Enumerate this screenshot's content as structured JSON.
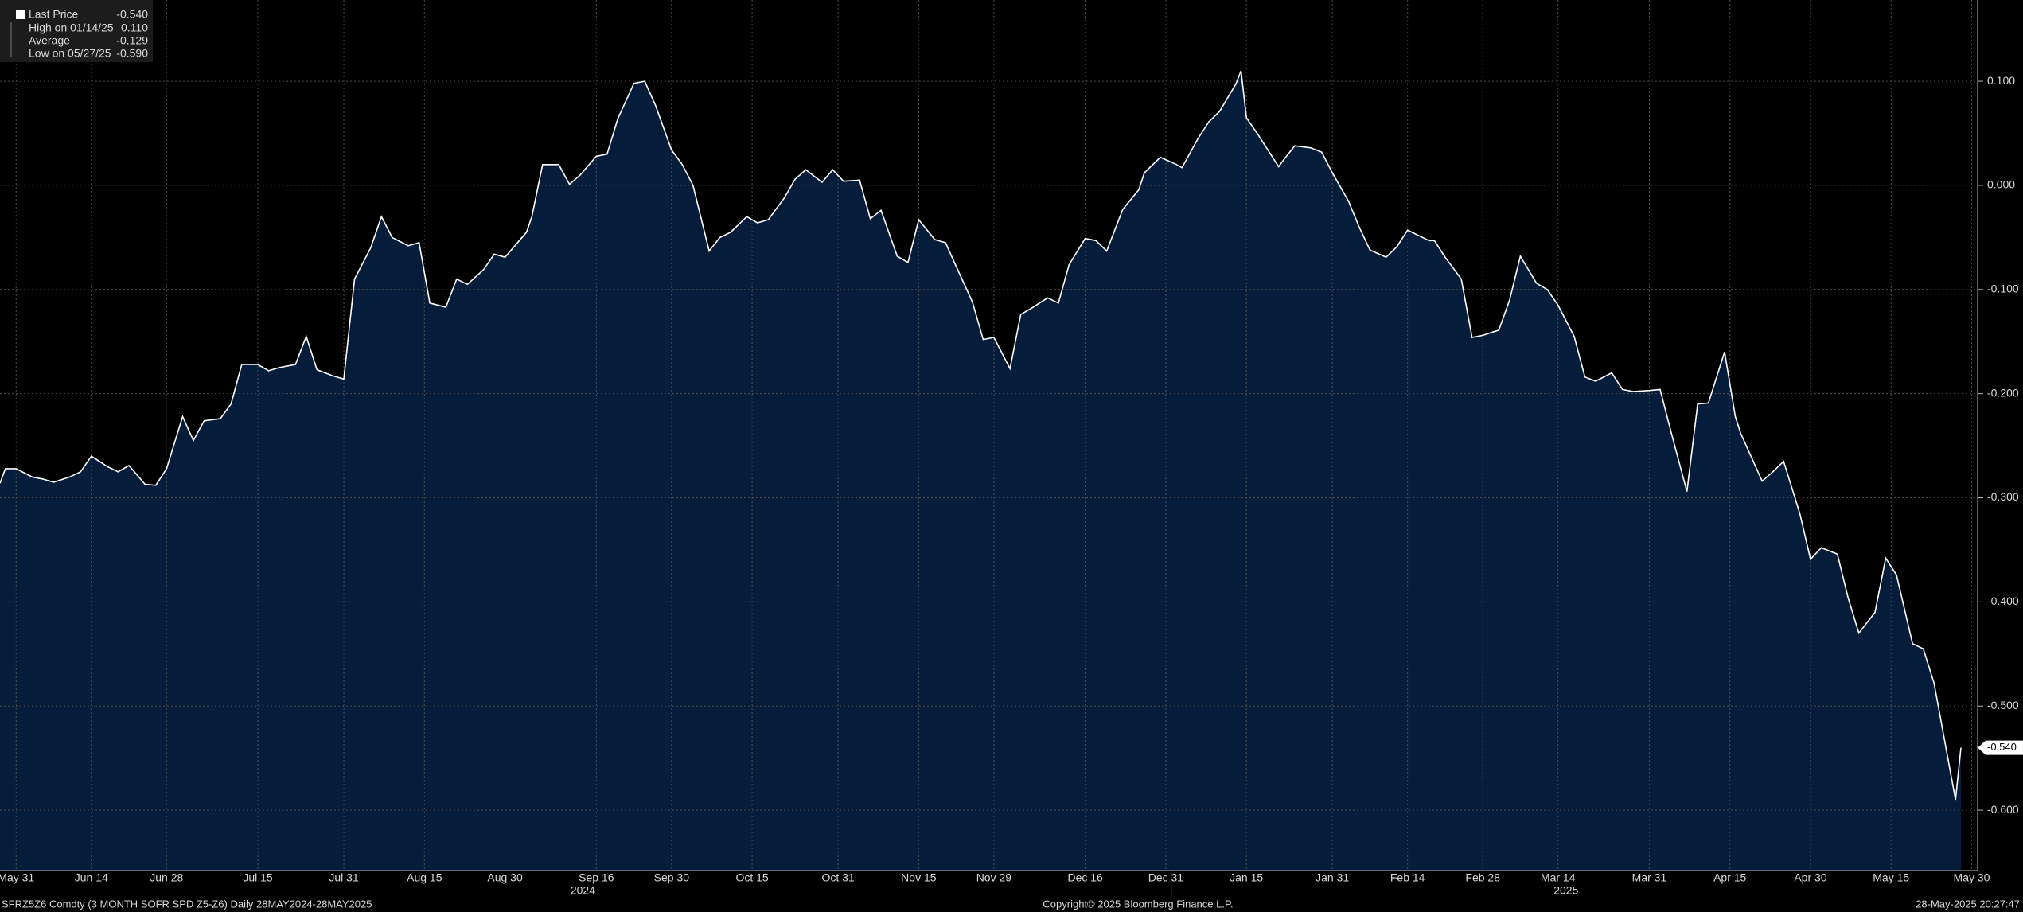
{
  "chart_data": {
    "type": "area",
    "series": [
      {
        "name": "Last Price",
        "color": "#ffffff",
        "fill": "#051d3b",
        "values": [
          -0.286,
          -0.272,
          -0.272,
          -0.28,
          -0.282,
          -0.285,
          -0.28,
          -0.275,
          -0.26,
          -0.27,
          -0.275,
          -0.269,
          -0.287,
          -0.288,
          -0.272,
          -0.222,
          -0.245,
          -0.226,
          -0.224,
          -0.21,
          -0.172,
          -0.172,
          -0.178,
          -0.175,
          -0.172,
          -0.145,
          -0.177,
          -0.183,
          -0.186,
          -0.09,
          -0.06,
          -0.03,
          -0.05,
          -0.058,
          -0.055,
          -0.113,
          -0.117,
          -0.09,
          -0.095,
          -0.081,
          -0.066,
          -0.069,
          -0.045,
          -0.03,
          0.02,
          0.02,
          0.001,
          0.01,
          0.028,
          0.03,
          0.064,
          0.098,
          0.1,
          0.077,
          0.034,
          0.02,
          0.0,
          -0.063,
          -0.05,
          -0.045,
          -0.03,
          -0.036,
          -0.033,
          -0.012,
          0.006,
          0.015,
          0.003,
          0.015,
          0.004,
          0.005,
          -0.032,
          -0.024,
          -0.068,
          -0.074,
          -0.033,
          -0.052,
          -0.055,
          -0.078,
          -0.112,
          -0.148,
          -0.146,
          -0.176,
          -0.124,
          -0.118,
          -0.108,
          -0.113,
          -0.076,
          -0.051,
          -0.053,
          -0.063,
          -0.023,
          -0.004,
          0.012,
          0.027,
          0.02,
          0.017,
          0.045,
          0.061,
          0.071,
          0.097,
          0.11,
          0.065,
          0.05,
          0.018,
          0.025,
          0.038,
          0.036,
          0.032,
          0.012,
          -0.015,
          -0.04,
          -0.062,
          -0.069,
          -0.059,
          -0.043,
          -0.053,
          -0.053,
          -0.069,
          -0.09,
          -0.146,
          -0.144,
          -0.139,
          -0.11,
          -0.068,
          -0.094,
          -0.1,
          -0.115,
          -0.145,
          -0.184,
          -0.188,
          -0.18,
          -0.196,
          -0.198,
          -0.197,
          -0.196,
          -0.236,
          -0.294,
          -0.21,
          -0.209,
          -0.16,
          -0.222,
          -0.238,
          -0.284,
          -0.275,
          -0.265,
          -0.315,
          -0.359,
          -0.348,
          -0.354,
          -0.396,
          -0.43,
          -0.41,
          -0.358,
          -0.374,
          -0.44,
          -0.445,
          -0.478,
          -0.59,
          -0.54
        ]
      }
    ],
    "x": [
      "2024-05-28",
      "2024-05-29",
      "2024-05-31",
      "2024-06-03",
      "2024-06-05",
      "2024-06-07",
      "2024-06-10",
      "2024-06-12",
      "2024-06-14",
      "2024-06-17",
      "2024-06-19",
      "2024-06-21",
      "2024-06-24",
      "2024-06-26",
      "2024-06-28",
      "2024-07-01",
      "2024-07-03",
      "2024-07-05",
      "2024-07-08",
      "2024-07-10",
      "2024-07-12",
      "2024-07-15",
      "2024-07-17",
      "2024-07-19",
      "2024-07-22",
      "2024-07-24",
      "2024-07-26",
      "2024-07-29",
      "2024-07-31",
      "2024-08-02",
      "2024-08-05",
      "2024-08-07",
      "2024-08-09",
      "2024-08-12",
      "2024-08-14",
      "2024-08-16",
      "2024-08-19",
      "2024-08-21",
      "2024-08-23",
      "2024-08-26",
      "2024-08-28",
      "2024-08-30",
      "2024-09-03",
      "2024-09-04",
      "2024-09-06",
      "2024-09-09",
      "2024-09-11",
      "2024-09-13",
      "2024-09-16",
      "2024-09-18",
      "2024-09-20",
      "2024-09-23",
      "2024-09-25",
      "2024-09-27",
      "2024-09-30",
      "2024-10-02",
      "2024-10-04",
      "2024-10-07",
      "2024-10-09",
      "2024-10-11",
      "2024-10-14",
      "2024-10-16",
      "2024-10-18",
      "2024-10-21",
      "2024-10-23",
      "2024-10-25",
      "2024-10-28",
      "2024-10-30",
      "2024-11-01",
      "2024-11-04",
      "2024-11-06",
      "2024-11-08",
      "2024-11-11",
      "2024-11-13",
      "2024-11-15",
      "2024-11-18",
      "2024-11-20",
      "2024-11-22",
      "2024-11-25",
      "2024-11-27",
      "2024-11-29",
      "2024-12-02",
      "2024-12-04",
      "2024-12-06",
      "2024-12-09",
      "2024-12-11",
      "2024-12-13",
      "2024-12-16",
      "2024-12-18",
      "2024-12-20",
      "2024-12-23",
      "2024-12-26",
      "2024-12-27",
      "2024-12-30",
      "2025-01-02",
      "2025-01-03",
      "2025-01-06",
      "2025-01-08",
      "2025-01-10",
      "2025-01-13",
      "2025-01-14",
      "2025-01-15",
      "2025-01-17",
      "2025-01-21",
      "2025-01-22",
      "2025-01-24",
      "2025-01-27",
      "2025-01-29",
      "2025-01-31",
      "2025-02-03",
      "2025-02-05",
      "2025-02-07",
      "2025-02-10",
      "2025-02-12",
      "2025-02-14",
      "2025-02-18",
      "2025-02-19",
      "2025-02-21",
      "2025-02-24",
      "2025-02-26",
      "2025-02-28",
      "2025-03-03",
      "2025-03-05",
      "2025-03-07",
      "2025-03-10",
      "2025-03-12",
      "2025-03-14",
      "2025-03-17",
      "2025-03-19",
      "2025-03-21",
      "2025-03-24",
      "2025-03-26",
      "2025-03-28",
      "2025-03-31",
      "2025-04-02",
      "2025-04-04",
      "2025-04-07",
      "2025-04-09",
      "2025-04-11",
      "2025-04-14",
      "2025-04-16",
      "2025-04-17",
      "2025-04-21",
      "2025-04-23",
      "2025-04-25",
      "2025-04-28",
      "2025-04-30",
      "2025-05-02",
      "2025-05-05",
      "2025-05-07",
      "2025-05-09",
      "2025-05-12",
      "2025-05-14",
      "2025-05-16",
      "2025-05-19",
      "2025-05-21",
      "2025-05-23",
      "2025-05-27",
      "2025-05-28"
    ],
    "xlim": [
      "2024-05-28",
      "2025-05-28"
    ],
    "xticks": [
      {
        "value": "2024-05-31",
        "label": "May 31"
      },
      {
        "value": "2024-06-14",
        "label": "Jun 14"
      },
      {
        "value": "2024-06-28",
        "label": "Jun 28"
      },
      {
        "value": "2024-07-15",
        "label": "Jul 15"
      },
      {
        "value": "2024-07-31",
        "label": "Jul 31"
      },
      {
        "value": "2024-08-15",
        "label": "Aug 15"
      },
      {
        "value": "2024-08-30",
        "label": "Aug 30"
      },
      {
        "value": "2024-09-16",
        "label": "Sep 16"
      },
      {
        "value": "2024-09-30",
        "label": "Sep 30"
      },
      {
        "value": "2024-10-15",
        "label": "Oct 15"
      },
      {
        "value": "2024-10-31",
        "label": "Oct 31"
      },
      {
        "value": "2024-11-15",
        "label": "Nov 15"
      },
      {
        "value": "2024-11-29",
        "label": "Nov 29"
      },
      {
        "value": "2024-12-16",
        "label": "Dec 16"
      },
      {
        "value": "2024-12-31",
        "label": "Dec 31"
      },
      {
        "value": "2025-01-15",
        "label": "Jan 15"
      },
      {
        "value": "2025-01-31",
        "label": "Jan 31"
      },
      {
        "value": "2025-02-14",
        "label": "Feb 14"
      },
      {
        "value": "2025-02-28",
        "label": "Feb 28"
      },
      {
        "value": "2025-03-14",
        "label": "Mar 14"
      },
      {
        "value": "2025-03-31",
        "label": "Mar 31"
      },
      {
        "value": "2025-04-15",
        "label": "Apr 15"
      },
      {
        "value": "2025-04-30",
        "label": "Apr 30"
      },
      {
        "value": "2025-05-15",
        "label": "May 15"
      },
      {
        "value": "2025-05-30",
        "label": "May 30"
      }
    ],
    "years": [
      "2024",
      "2025"
    ],
    "ylim": [
      -0.658,
      0.178
    ],
    "yticks": [
      {
        "value": 0.1,
        "label": "0.100"
      },
      {
        "value": 0,
        "label": "0.000"
      },
      {
        "value": -0.1,
        "label": "-0.100"
      },
      {
        "value": -0.2,
        "label": "-0.200"
      },
      {
        "value": -0.3,
        "label": "-0.300"
      },
      {
        "value": -0.4,
        "label": "-0.400"
      },
      {
        "value": -0.5,
        "label": "-0.500"
      },
      {
        "value": -0.6,
        "label": "-0.600"
      }
    ],
    "grid": true,
    "last": {
      "value": -0.54,
      "label": "-0.540"
    },
    "stats": {
      "labels": [
        "High on 01/14/25",
        "Average",
        "Low on 05/27/25"
      ],
      "values": [
        0.11,
        -0.129,
        -0.59
      ],
      "value_labels": [
        "0.110",
        "-0.129",
        "-0.590"
      ]
    },
    "footer": {
      "left": "SFRZ5Z6 Comdty (3 MONTH SOFR SPD  Z5-Z6)  Daily 28MAY2024-28MAY2025",
      "center": "Copyright© 2025 Bloomberg Finance L.P.",
      "right": "28-May-2025 20:27:47"
    }
  }
}
